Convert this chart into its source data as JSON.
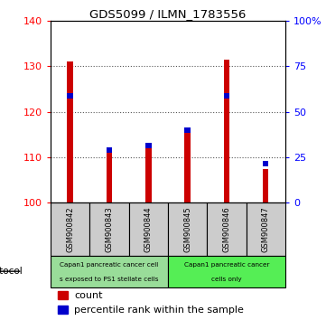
{
  "title": "GDS5099 / ILMN_1783556",
  "samples": [
    "GSM900842",
    "GSM900843",
    "GSM900844",
    "GSM900845",
    "GSM900846",
    "GSM900847"
  ],
  "count_values": [
    131.0,
    111.5,
    112.0,
    116.5,
    131.5,
    107.5
  ],
  "percentile_values": [
    123.5,
    111.5,
    112.5,
    116.0,
    123.5,
    108.5
  ],
  "count_base": 100,
  "ylim_left": [
    100,
    140
  ],
  "ylim_right": [
    0,
    100
  ],
  "yticks_left": [
    100,
    110,
    120,
    130,
    140
  ],
  "yticks_right": [
    0,
    25,
    50,
    75,
    100
  ],
  "ytick_labels_right": [
    "0",
    "25",
    "50",
    "75",
    "100%"
  ],
  "bar_color": "#cc0000",
  "marker_color": "#0000cc",
  "grid_dotted_color": "#555555",
  "protocol_group1_label1": "Capan1 pancreatic cancer cell",
  "protocol_group1_label2": "s exposed to PS1 stellate cells",
  "protocol_group2_label1": "Capan1 pancreatic cancer",
  "protocol_group2_label2": "cells only",
  "protocol_group1_samples": [
    0,
    1,
    2
  ],
  "protocol_group2_samples": [
    3,
    4,
    5
  ],
  "protocol_group1_color": "#99dd99",
  "protocol_group2_color": "#55ee55",
  "legend_count_label": "count",
  "legend_percentile_label": "percentile rank within the sample",
  "protocol_label": "protocol",
  "sample_box_color": "#cccccc",
  "bar_width": 0.15
}
